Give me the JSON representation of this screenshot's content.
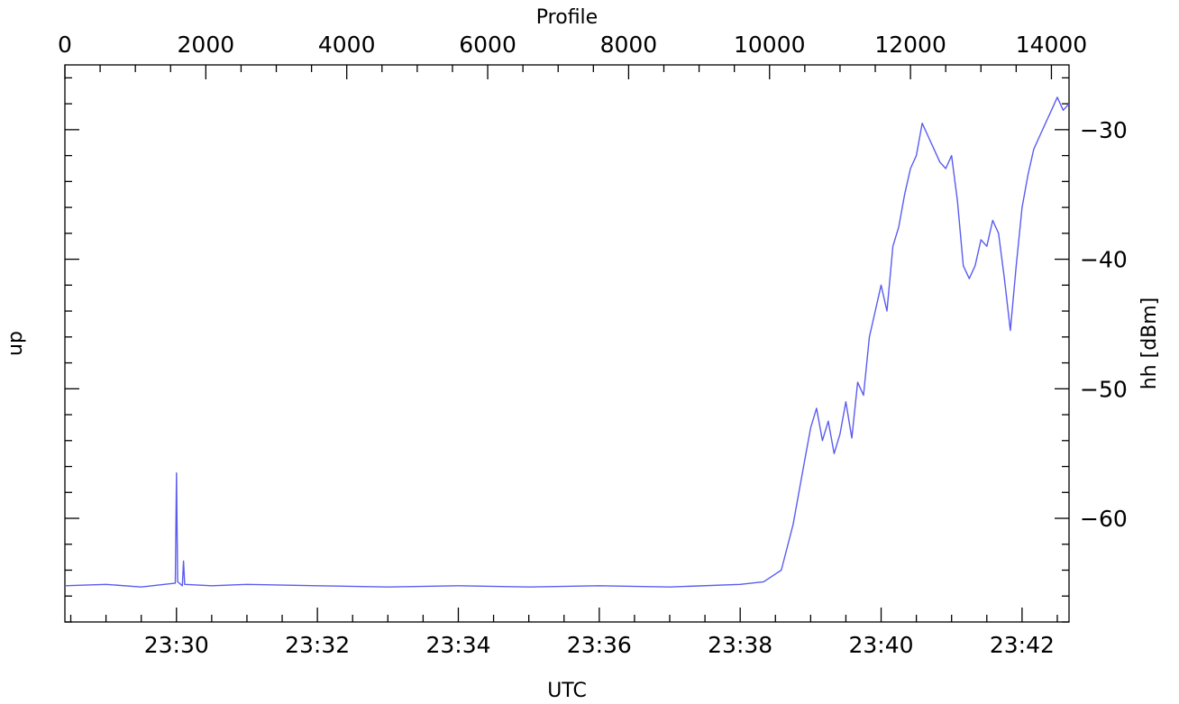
{
  "chart_data": {
    "type": "line",
    "xlabel": "UTC",
    "x2label": "Profile",
    "ylabel_left": "up",
    "ylabel_right": "hh [dBm]",
    "x_ticks": [
      "23:30",
      "23:32",
      "23:34",
      "23:36",
      "23:38",
      "23:40",
      "23:42"
    ],
    "x2_ticks": [
      "0",
      "2000",
      "4000",
      "6000",
      "8000",
      "10000",
      "12000",
      "14000"
    ],
    "y_right_ticks": [
      "−30",
      "−40",
      "−50",
      "−60"
    ],
    "x_range": [
      "23:28:25",
      "23:42:40"
    ],
    "x2_range": [
      0,
      14250
    ],
    "y_right_range": [
      -68,
      -25
    ],
    "grid": false,
    "series": [
      {
        "color": "#5a5cf0",
        "x": [
          "23:28:25",
          "23:29:00",
          "23:29:30",
          "23:29:59",
          "23:30:00",
          "23:30:01",
          "23:30:05",
          "23:30:06",
          "23:30:07",
          "23:30:30",
          "23:31:00",
          "23:32:00",
          "23:33:00",
          "23:34:00",
          "23:35:00",
          "23:36:00",
          "23:37:00",
          "23:38:00",
          "23:38:20",
          "23:38:35",
          "23:38:45",
          "23:38:50",
          "23:38:55",
          "23:39:00",
          "23:39:05",
          "23:39:10",
          "23:39:15",
          "23:39:20",
          "23:39:25",
          "23:39:30",
          "23:39:35",
          "23:39:40",
          "23:39:45",
          "23:39:50",
          "23:39:55",
          "23:40:00",
          "23:40:05",
          "23:40:10",
          "23:40:15",
          "23:40:20",
          "23:40:25",
          "23:40:30",
          "23:40:35",
          "23:40:40",
          "23:40:45",
          "23:40:50",
          "23:40:55",
          "23:41:00",
          "23:41:05",
          "23:41:10",
          "23:41:15",
          "23:41:20",
          "23:41:25",
          "23:41:30",
          "23:41:35",
          "23:41:40",
          "23:41:45",
          "23:41:50",
          "23:41:55",
          "23:42:00",
          "23:42:05",
          "23:42:10",
          "23:42:15",
          "23:42:20",
          "23:42:25",
          "23:42:30",
          "23:42:35",
          "23:42:40"
        ],
        "y": [
          -65.2,
          -65.1,
          -65.3,
          -65.0,
          -56.5,
          -64.9,
          -65.2,
          -63.3,
          -65.1,
          -65.2,
          -65.1,
          -65.2,
          -65.3,
          -65.2,
          -65.3,
          -65.2,
          -65.3,
          -65.1,
          -64.9,
          -64.0,
          -60.5,
          -58.0,
          -55.5,
          -53.0,
          -51.5,
          -54.0,
          -52.5,
          -55.0,
          -53.5,
          -51.0,
          -53.8,
          -49.5,
          -50.5,
          -46.0,
          -44.0,
          -42.0,
          -44.0,
          -39.0,
          -37.5,
          -35.0,
          -33.0,
          -32.0,
          -29.5,
          -30.5,
          -31.5,
          -32.5,
          -33.0,
          -32.0,
          -35.5,
          -40.5,
          -41.5,
          -40.5,
          -38.5,
          -39.0,
          -37.0,
          -38.0,
          -41.5,
          -45.5,
          -40.5,
          -36.0,
          -33.5,
          -31.5,
          -30.5,
          -29.5,
          -28.5,
          -27.5,
          -28.5,
          -28.0
        ]
      }
    ]
  }
}
